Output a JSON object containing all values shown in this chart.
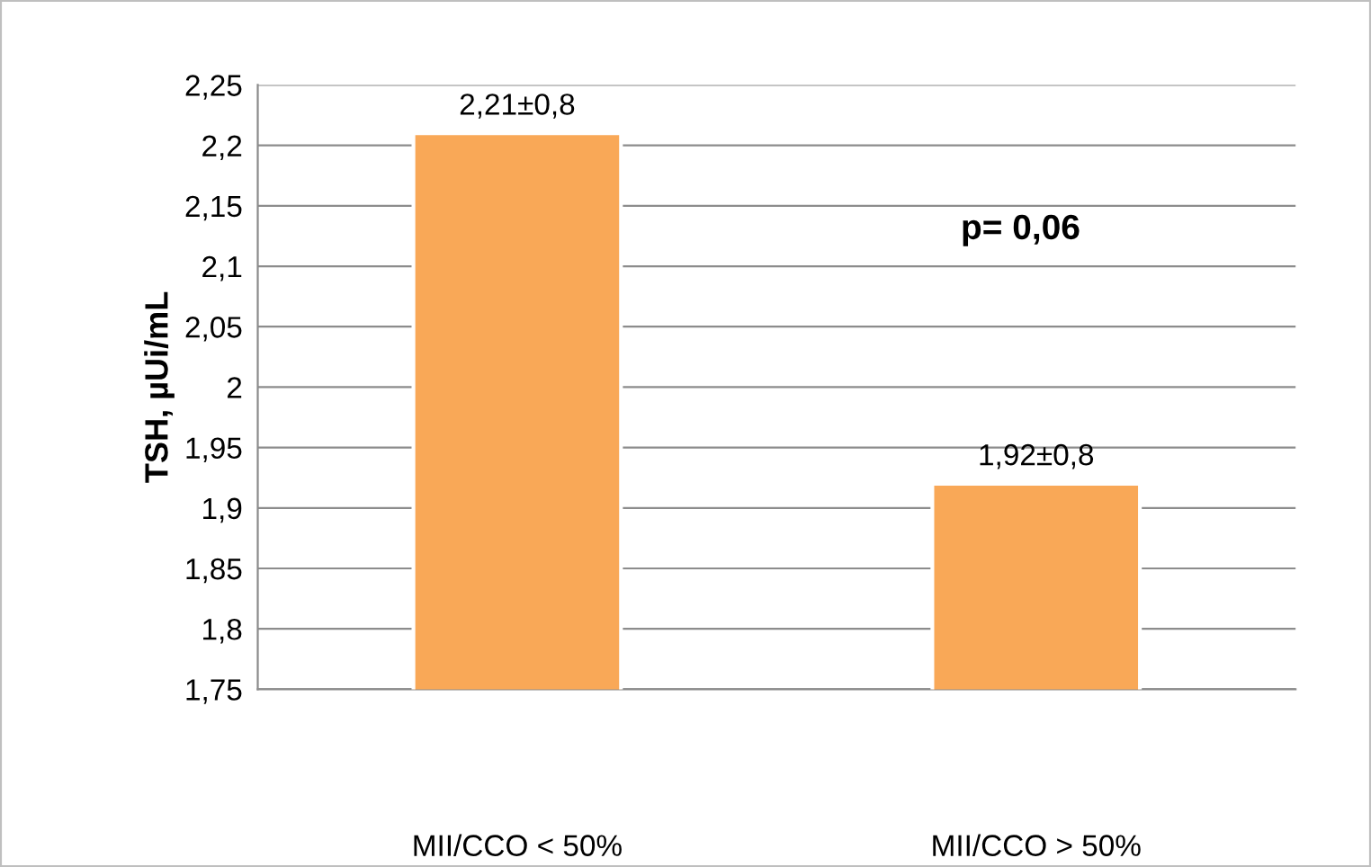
{
  "chart_data": {
    "type": "bar",
    "ylabel": "TSH, µUi/mL",
    "categories": [
      "MII/CCO < 50%",
      "MII/CCO > 50%"
    ],
    "values": [
      2.21,
      1.92
    ],
    "color": "#f9a857",
    "value_labels": [
      "2,21±0,8",
      "1,92±0,8"
    ],
    "ylim": [
      1.75,
      2.25
    ],
    "yticks": [
      {
        "value": 1.75,
        "label": "1,75"
      },
      {
        "value": 1.8,
        "label": "1,8"
      },
      {
        "value": 1.85,
        "label": "1,85"
      },
      {
        "value": 1.9,
        "label": "1,9"
      },
      {
        "value": 1.95,
        "label": "1,95"
      },
      2,
      {
        "value": 2.05,
        "label": "2,05"
      },
      {
        "value": 2.1,
        "label": "2,1"
      },
      {
        "value": 2.15,
        "label": "2,15"
      },
      {
        "value": 2.2,
        "label": "2,2"
      },
      {
        "value": 2.25,
        "label": "2,25"
      }
    ],
    "grid": "y",
    "annotations": [
      "p= 0,06"
    ]
  }
}
